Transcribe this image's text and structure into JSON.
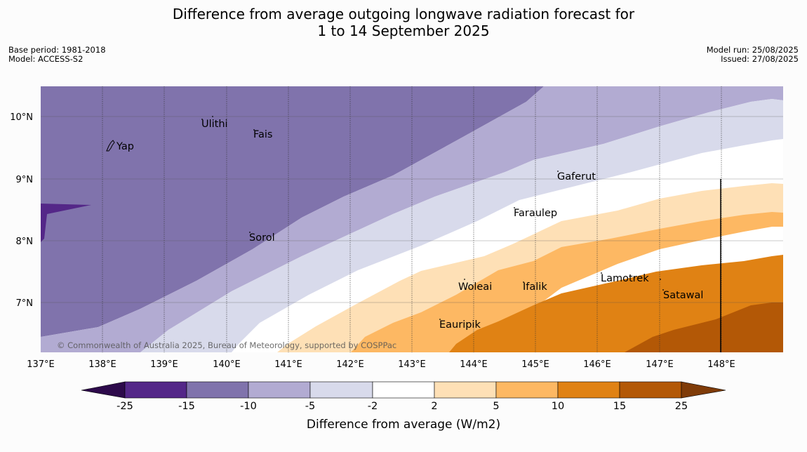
{
  "title": {
    "line1": "Difference from average outgoing longwave radiation forecast for",
    "line2": "1 to 14 September 2025"
  },
  "meta": {
    "base_period": "Base period: 1981-2018",
    "model": "Model: ACCESS-S2",
    "model_run": "Model run: 25/08/2025",
    "issued": "Issued: 27/08/2025"
  },
  "map": {
    "lon_labels": [
      "137°E",
      "138°E",
      "139°E",
      "140°E",
      "141°E",
      "142°E",
      "143°E",
      "144°E",
      "145°E",
      "146°E",
      "147°E",
      "148°E"
    ],
    "lat_labels": [
      "10°N",
      "9°N",
      "8°N",
      "7°N"
    ],
    "places": [
      "Ulithi",
      "Fais",
      "Yap",
      "Gaferut",
      "Faraulep",
      "Sorol",
      "Woleai",
      "Ifalik",
      "Lamotrek",
      "Satawal",
      "Eauripik"
    ],
    "copyright": "© Commonwealth of Australia 2025, Bureau of Meteorology, supported by COSPPac"
  },
  "legend": {
    "ticks": [
      "-25",
      "-15",
      "-10",
      "-5",
      "-2",
      "2",
      "5",
      "10",
      "15",
      "25"
    ],
    "label": "Difference from average (W/m2)",
    "colors": {
      "below_-25": "#2d0a4b",
      "-25_to_-15": "#542788",
      "-15_to_-10": "#8073ac",
      "-10_to_-5": "#b2abd2",
      "-5_to_-2": "#d8daeb",
      "-2_to_2": "#ffffff",
      "2_to_5": "#fee0b6",
      "5_to_10": "#fdb863",
      "10_to_15": "#e08214",
      "15_to_25": "#b35806",
      "above_25": "#7f3b08"
    }
  }
}
